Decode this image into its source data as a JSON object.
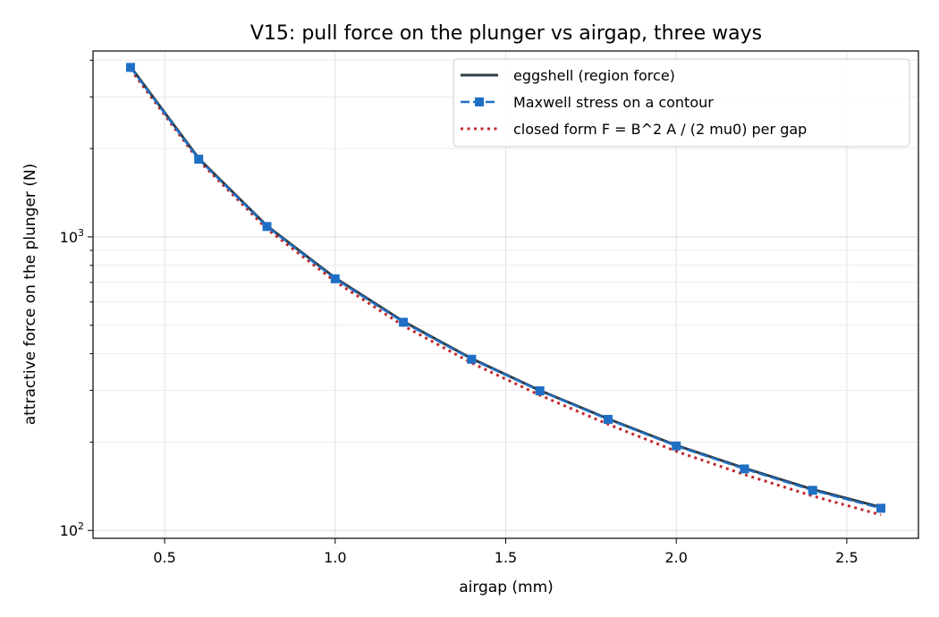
{
  "chart_data": {
    "type": "line",
    "title": "V15: pull force on the plunger vs airgap, three ways",
    "xlabel": "airgap (mm)",
    "ylabel": "attractive force on the plunger (N)",
    "xlim": [
      0.29,
      2.71
    ],
    "ylim": [
      94,
      4300
    ],
    "yscale": "log",
    "grid": true,
    "legend_position": "top-right",
    "x_ticks": [
      0.5,
      1.0,
      1.5,
      2.0,
      2.5
    ],
    "x_tick_labels": [
      "0.5",
      "1.0",
      "1.5",
      "2.0",
      "2.5"
    ],
    "y_major_ticks": [
      100,
      1000
    ],
    "y_tick_labels": [
      {
        "base": "10",
        "exp": "2"
      },
      {
        "base": "10",
        "exp": "3"
      }
    ],
    "x": [
      0.4,
      0.6,
      0.8,
      1.0,
      1.2,
      1.4,
      1.6,
      1.8,
      2.0,
      2.2,
      2.4,
      2.6
    ],
    "series": [
      {
        "name": "eggshell (region force)",
        "style": "solid",
        "color": "#2f3e46",
        "values": [
          3800,
          1850,
          1090,
          725,
          515,
          385,
          300,
          240,
          195,
          163,
          138,
          120
        ]
      },
      {
        "name": "Maxwell stress on a contour",
        "style": "dashed-square",
        "color": "#1f6fc5",
        "values": [
          3780,
          1840,
          1085,
          720,
          512,
          383,
          299,
          239,
          194,
          162,
          137,
          119
        ]
      },
      {
        "name": "closed form  F = B^2 A / (2 mu0) per gap",
        "style": "dotted",
        "color": "#c0282d",
        "values": [
          3720,
          1820,
          1065,
          705,
          498,
          372,
          289,
          230,
          186,
          155,
          131,
          113
        ]
      }
    ]
  }
}
